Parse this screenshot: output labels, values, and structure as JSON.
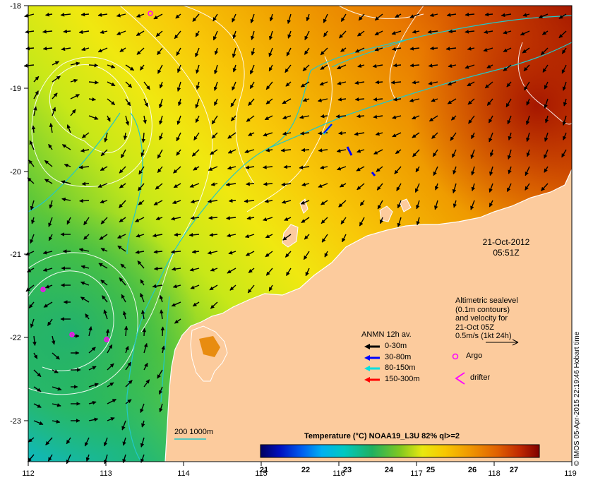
{
  "map": {
    "date": "21-Oct-2012",
    "time": "05:51Z",
    "x_ticks": [
      "112",
      "113",
      "114",
      "115",
      "116",
      "117",
      "118",
      "119"
    ],
    "y_ticks": [
      "-18",
      "-19",
      "-20",
      "-21",
      "-22",
      "-23"
    ],
    "altimetric": [
      "Altimetric sealevel",
      "(0.1m contours)",
      "and velocity for",
      "21-Oct 05Z",
      "0.5m/s (1kt 24h)"
    ],
    "anmn_title": "ANMN 12h av.",
    "anmn_legend": [
      {
        "label": "0-30m",
        "color": "#000000"
      },
      {
        "label": "30-80m",
        "color": "#0000ff"
      },
      {
        "label": "80-150m",
        "color": "#00e0e0"
      },
      {
        "label": "150-300m",
        "color": "#ff0000"
      }
    ],
    "argo_label": "Argo",
    "drifter_label": "drifter",
    "isobath_label": "200  1000m",
    "colorbar": {
      "title": "Temperature (°C) NOAA19_L3U 82% ql>=2",
      "ticks": [
        "21",
        "22",
        "23",
        "24",
        "25",
        "26",
        "27"
      ],
      "range": [
        21,
        27.7
      ]
    },
    "credit": "© IMOS 05-Apr-2015 22:19:46 Hobart time",
    "colors": {
      "land": "#fccb9d",
      "argo": "#ff00ff",
      "isobath": "#22c8c8",
      "contour": "#ffffff"
    }
  }
}
